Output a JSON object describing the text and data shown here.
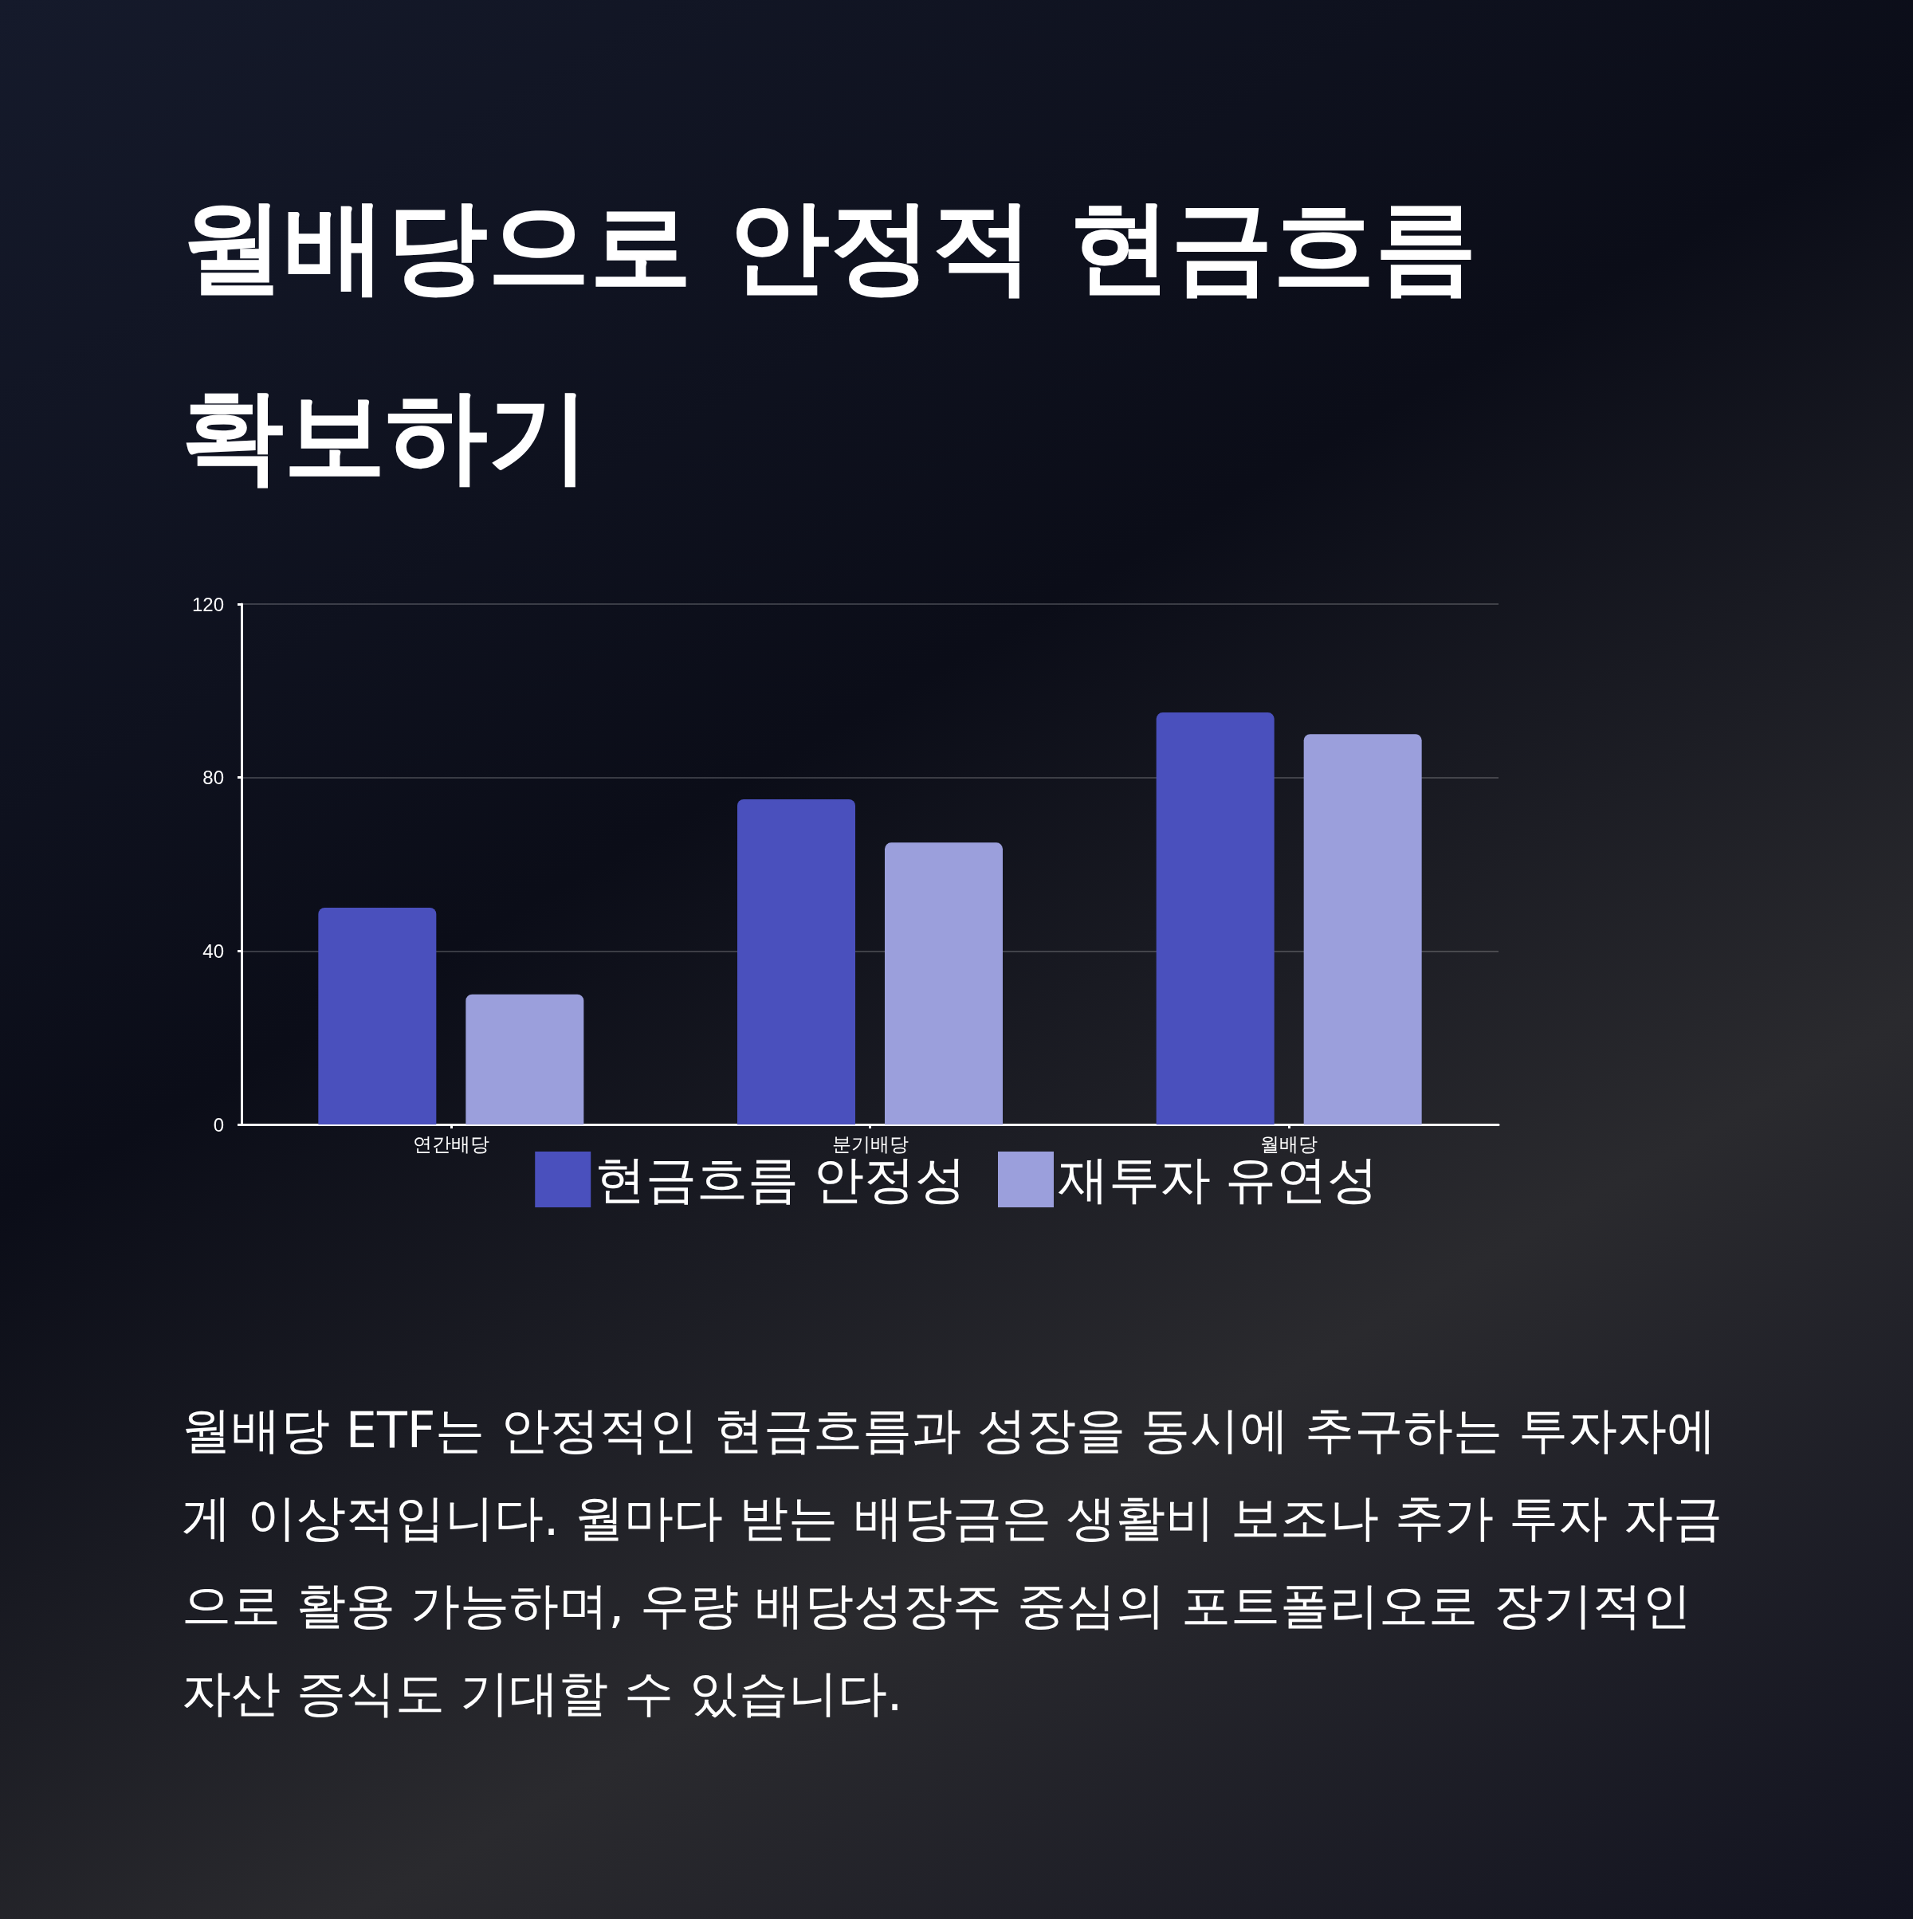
{
  "chart_data": {
    "type": "bar",
    "title": "월배당으로 안정적 현금흐름 확보하기",
    "categories": [
      "연간배당",
      "분기배당",
      "월배당"
    ],
    "series": [
      {
        "name": "현금흐름 안정성",
        "color": "#4a50bd",
        "values": [
          50,
          75,
          95
        ]
      },
      {
        "name": "재투자 유연성",
        "color": "#9b9fdc",
        "values": [
          30,
          65,
          90
        ]
      }
    ],
    "ylim": [
      0,
      120
    ],
    "yticks": [
      0,
      40,
      80,
      120
    ],
    "grid": "y",
    "legend": "bottom",
    "annotations": [
      "월배당 ETF는 안정적인 현금흐름과 성장을 동시에 추구하는 투자자에게 이상적입니다. 월마다 받는 배당금은 생활비 보조나 추가 투자 자금으로 활용 가능하며, 우량 배당성장주 중심의 포트폴리오로 장기적인 자산 증식도 기대할 수 있습니다."
    ]
  }
}
